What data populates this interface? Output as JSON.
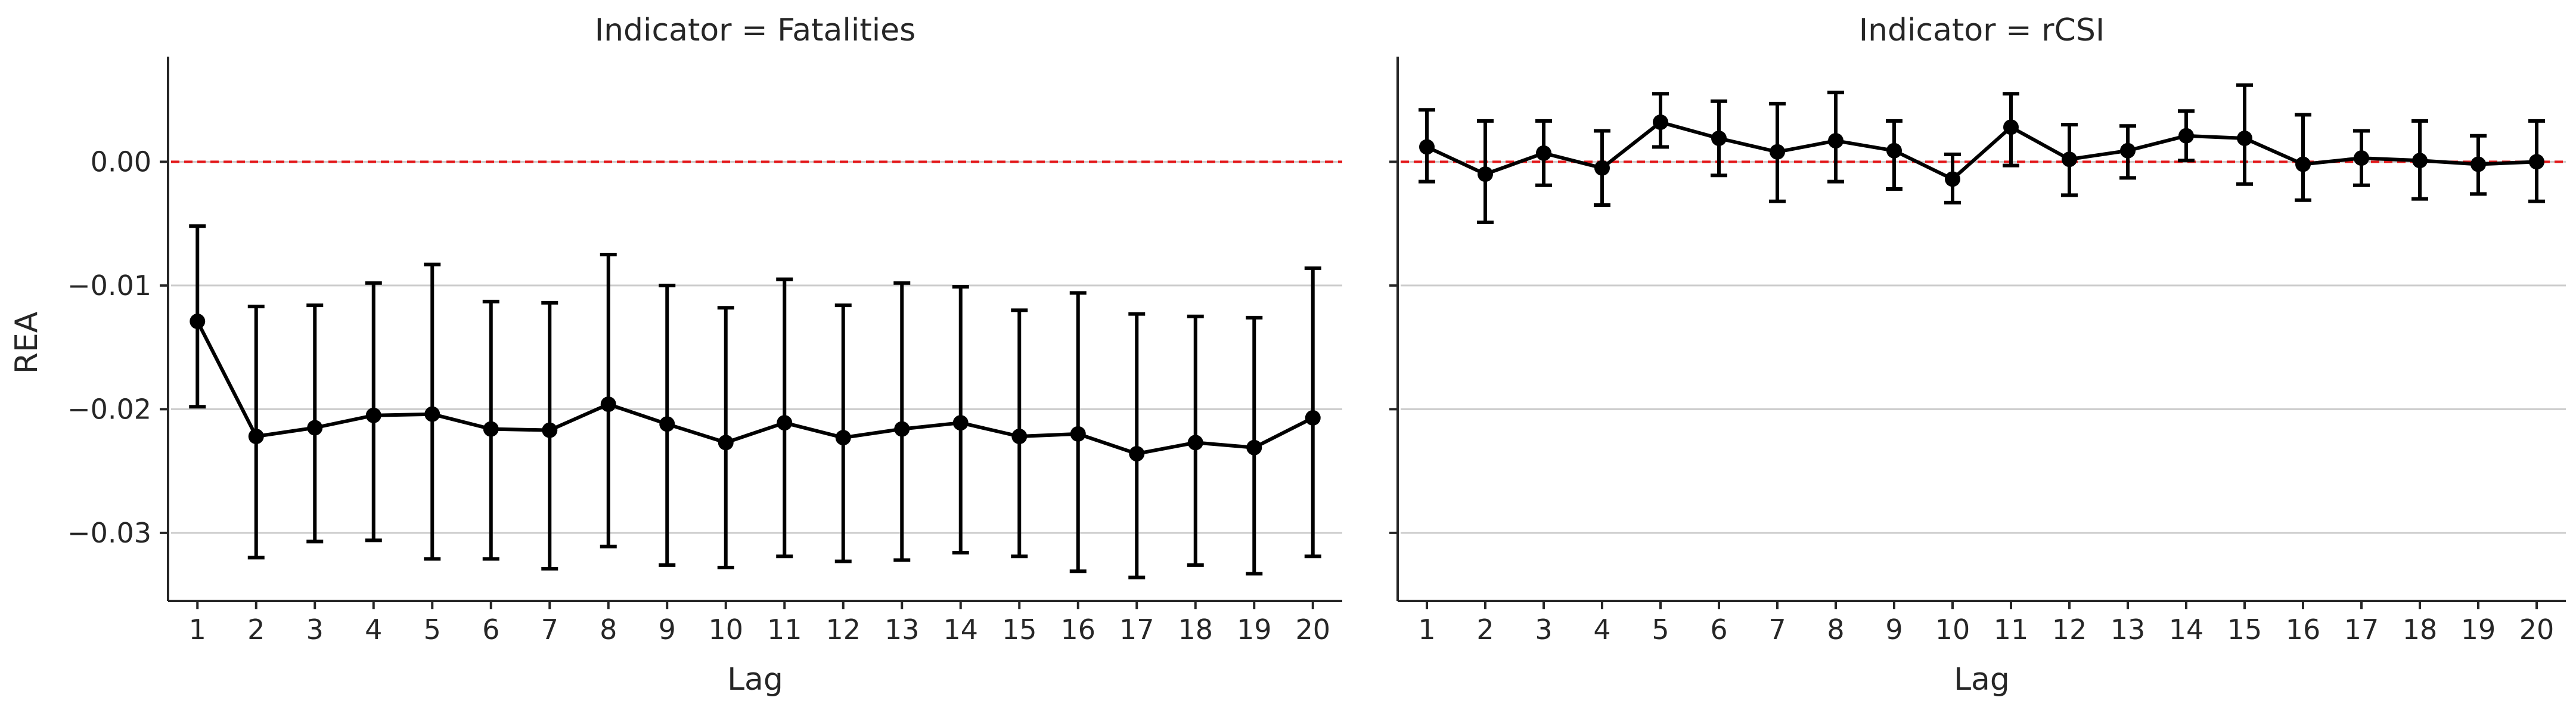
{
  "chart_data": [
    {
      "type": "line",
      "title": "Indicator = Fatalities",
      "xlabel": "Lag",
      "ylabel": "REA",
      "x": [
        1,
        2,
        3,
        4,
        5,
        6,
        7,
        8,
        9,
        10,
        11,
        12,
        13,
        14,
        15,
        16,
        17,
        18,
        19,
        20
      ],
      "ylim": [
        -0.0355,
        0.0085
      ],
      "yticks": [
        0.0,
        -0.01,
        -0.02,
        -0.03
      ],
      "ytick_labels": [
        "0.00",
        "−0.01",
        "−0.02",
        "−0.03"
      ],
      "grid": "horizontal",
      "reference_line": {
        "y": 0,
        "color": "#e31a1c",
        "style": "dashed"
      },
      "series": [
        {
          "color": "#000000",
          "values": [
            -0.0129,
            -0.0222,
            -0.0215,
            -0.0205,
            -0.0204,
            -0.0216,
            -0.0217,
            -0.0196,
            -0.0212,
            -0.0227,
            -0.0211,
            -0.0223,
            -0.0216,
            -0.0211,
            -0.0222,
            -0.022,
            -0.0236,
            -0.0227,
            -0.0231,
            -0.0207
          ],
          "error_low": [
            -0.0198,
            -0.032,
            -0.0307,
            -0.0306,
            -0.0321,
            -0.0321,
            -0.0329,
            -0.0311,
            -0.0326,
            -0.0328,
            -0.0319,
            -0.0323,
            -0.0322,
            -0.0316,
            -0.0319,
            -0.0331,
            -0.0336,
            -0.0326,
            -0.0333,
            -0.0319
          ],
          "error_high": [
            -0.0052,
            -0.0117,
            -0.0116,
            -0.0098,
            -0.0083,
            -0.0113,
            -0.0114,
            -0.0075,
            -0.01,
            -0.0118,
            -0.0095,
            -0.0116,
            -0.0098,
            -0.0101,
            -0.012,
            -0.0106,
            -0.0123,
            -0.0125,
            -0.0126,
            -0.0086
          ]
        }
      ]
    },
    {
      "type": "line",
      "title": "Indicator = rCSI",
      "xlabel": "Lag",
      "ylabel": "",
      "x": [
        1,
        2,
        3,
        4,
        5,
        6,
        7,
        8,
        9,
        10,
        11,
        12,
        13,
        14,
        15,
        16,
        17,
        18,
        19,
        20
      ],
      "ylim": [
        -0.0355,
        0.0085
      ],
      "yticks": [
        0.0,
        -0.01,
        -0.02,
        -0.03
      ],
      "ytick_labels": [
        "",
        "",
        "",
        ""
      ],
      "grid": "horizontal",
      "reference_line": {
        "y": 0,
        "color": "#e31a1c",
        "style": "dashed"
      },
      "series": [
        {
          "color": "#000000",
          "values": [
            0.0012,
            -0.001,
            0.0007,
            -0.0005,
            0.0032,
            0.0019,
            0.0008,
            0.0017,
            0.0009,
            -0.0014,
            0.0028,
            0.0002,
            0.0009,
            0.0021,
            0.0019,
            -0.0002,
            0.0003,
            0.0001,
            -0.0002,
            0.0
          ],
          "error_low": [
            -0.0016,
            -0.0049,
            -0.0019,
            -0.0035,
            0.0012,
            -0.0011,
            -0.0032,
            -0.0016,
            -0.0022,
            -0.0033,
            -0.0003,
            -0.0027,
            -0.0013,
            0.0001,
            -0.0018,
            -0.0031,
            -0.0019,
            -0.003,
            -0.0026,
            -0.0032
          ],
          "error_high": [
            0.0042,
            0.0033,
            0.0033,
            0.0025,
            0.0055,
            0.0049,
            0.0047,
            0.0056,
            0.0033,
            0.0006,
            0.0055,
            0.003,
            0.0029,
            0.0041,
            0.0062,
            0.0038,
            0.0025,
            0.0033,
            0.0021,
            0.0033
          ]
        }
      ]
    }
  ]
}
